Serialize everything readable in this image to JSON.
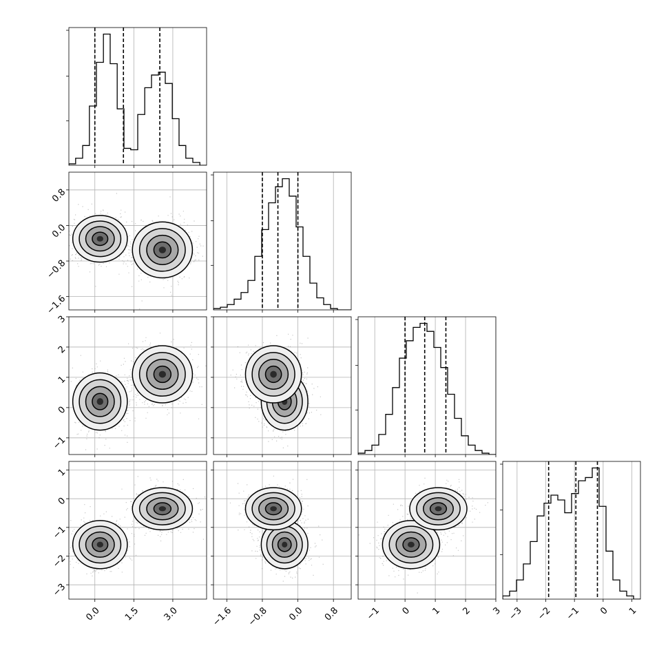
{
  "chart_data": {
    "type": "corner",
    "parameters": 4,
    "colors": {
      "ink": "#000000",
      "grid": "#b0b0b0",
      "points": "#7f7f7f",
      "background": "#ffffff"
    },
    "grid": true,
    "axes": [
      {
        "range": [
          -1.0,
          4.3
        ],
        "ticks": [
          0.0,
          1.5,
          3.0
        ],
        "tick_labels": [
          "0.0",
          "1.5",
          "3.0"
        ]
      },
      {
        "range": [
          -1.9,
          1.2
        ],
        "ticks": [
          -1.6,
          -0.8,
          0.0,
          0.8
        ],
        "tick_labels": [
          "−1.6",
          "−0.8",
          "0.0",
          "0.8"
        ]
      },
      {
        "range": [
          -1.55,
          3.0
        ],
        "ticks": [
          -1,
          0,
          1,
          2,
          3
        ],
        "tick_labels": [
          "−1",
          "0",
          "1",
          "2",
          "3"
        ]
      },
      {
        "range": [
          -3.5,
          1.3
        ],
        "ticks": [
          -3,
          -2,
          -1,
          0,
          1
        ],
        "tick_labels": [
          "−3",
          "−2",
          "−1",
          "0",
          "1"
        ]
      }
    ],
    "quantiles": [
      [
        0.0,
        1.1,
        2.5
      ],
      [
        -0.8,
        -0.45,
        0.0
      ],
      [
        0.0,
        0.65,
        1.35
      ],
      [
        -1.9,
        -0.95,
        -0.2
      ]
    ],
    "histograms": [
      {
        "bin_edges": [
          -1.0,
          -0.74,
          -0.47,
          -0.21,
          0.06,
          0.33,
          0.59,
          0.86,
          1.12,
          1.38,
          1.65,
          1.92,
          2.18,
          2.45,
          2.71,
          2.98,
          3.24,
          3.5,
          3.77,
          4.04,
          4.3
        ],
        "counts": [
          0.01,
          0.05,
          0.14,
          0.42,
          0.73,
          0.93,
          0.72,
          0.4,
          0.12,
          0.11,
          0.36,
          0.55,
          0.64,
          0.66,
          0.58,
          0.33,
          0.14,
          0.05,
          0.02,
          0.0
        ]
      },
      {
        "bin_edges": [
          -1.9,
          -1.745,
          -1.59,
          -1.435,
          -1.28,
          -1.125,
          -0.97,
          -0.815,
          -0.66,
          -0.505,
          -0.35,
          -0.195,
          -0.04,
          0.115,
          0.27,
          0.425,
          0.58,
          0.735,
          0.89,
          1.045,
          1.2
        ],
        "counts": [
          0.01,
          0.02,
          0.04,
          0.08,
          0.13,
          0.22,
          0.4,
          0.6,
          0.8,
          0.92,
          0.98,
          0.85,
          0.62,
          0.4,
          0.2,
          0.09,
          0.04,
          0.01,
          0.0,
          0.0
        ]
      },
      {
        "bin_edges": [
          -1.55,
          -1.3225,
          -1.095,
          -0.8675,
          -0.64,
          -0.4125,
          -0.185,
          0.0425,
          0.27,
          0.4975,
          0.725,
          0.9525,
          1.18,
          1.4075,
          1.635,
          1.8625,
          2.09,
          2.3175,
          2.545,
          2.7725,
          3.0
        ],
        "counts": [
          0.01,
          0.03,
          0.07,
          0.15,
          0.3,
          0.5,
          0.72,
          0.85,
          0.95,
          0.98,
          0.92,
          0.8,
          0.65,
          0.45,
          0.27,
          0.14,
          0.07,
          0.03,
          0.01,
          0.0
        ]
      },
      {
        "bin_edges": [
          -3.5,
          -3.26,
          -3.02,
          -2.78,
          -2.54,
          -2.3,
          -2.06,
          -1.82,
          -1.58,
          -1.34,
          -1.1,
          -0.86,
          -0.62,
          -0.38,
          -0.14,
          0.1,
          0.34,
          0.58,
          0.82,
          1.06,
          1.3
        ],
        "counts": [
          0.02,
          0.05,
          0.12,
          0.22,
          0.36,
          0.52,
          0.6,
          0.65,
          0.62,
          0.54,
          0.66,
          0.74,
          0.76,
          0.82,
          0.58,
          0.3,
          0.12,
          0.05,
          0.02,
          0.0
        ]
      }
    ],
    "modes_2d": [
      {
        "center": [
          0.2,
          -0.3,
          0.2,
          -1.6
        ],
        "sigma": [
          0.5,
          0.25,
          0.45,
          0.4
        ],
        "weight": 0.5
      },
      {
        "center": [
          2.6,
          -0.55,
          1.1,
          -0.35
        ],
        "sigma": [
          0.55,
          0.3,
          0.45,
          0.35
        ],
        "weight": 0.5
      }
    ]
  }
}
